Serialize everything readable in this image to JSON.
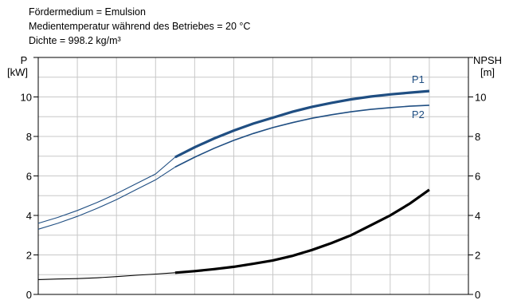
{
  "header": {
    "line1": "Fördermedium = Emulsion",
    "line2": "Medientemperatur während des Betriebes = 20 °C",
    "line3": "Dichte = 998.2 kg/m³"
  },
  "chart_data": {
    "type": "line",
    "left_axis": {
      "label_line1": "P",
      "label_line2": "[kW]",
      "ticks": [
        "0",
        "2",
        "4",
        "6",
        "8",
        "10"
      ],
      "ylim": [
        0,
        12
      ]
    },
    "right_axis": {
      "label_line1": "NPSH",
      "label_line2": "[m]",
      "ticks": [
        "0",
        "2",
        "4",
        "6",
        "8",
        "10"
      ],
      "ylim": [
        0,
        12
      ]
    },
    "xlim": [
      0,
      11
    ],
    "grid": true,
    "operating_range": [
      3.5,
      10
    ],
    "colors": {
      "power": "#1f4e82",
      "npsh": "#000000",
      "grid": "#c8c8c8"
    },
    "series": [
      {
        "name": "P1",
        "axis": "left",
        "x": [
          0,
          0.5,
          1,
          1.5,
          2,
          2.5,
          3,
          3.5,
          4,
          4.5,
          5,
          5.5,
          6,
          6.5,
          7,
          7.5,
          8,
          8.5,
          9,
          9.5,
          10
        ],
        "values": [
          3.6,
          3.9,
          4.25,
          4.65,
          5.1,
          5.6,
          6.1,
          6.95,
          7.45,
          7.9,
          8.3,
          8.65,
          8.95,
          9.25,
          9.5,
          9.7,
          9.88,
          10.02,
          10.13,
          10.22,
          10.3
        ]
      },
      {
        "name": "P2",
        "axis": "left",
        "x": [
          0,
          0.5,
          1,
          1.5,
          2,
          2.5,
          3,
          3.5,
          4,
          4.5,
          5,
          5.5,
          6,
          6.5,
          7,
          7.5,
          8,
          8.5,
          9,
          9.5,
          10
        ],
        "values": [
          3.3,
          3.6,
          3.95,
          4.35,
          4.8,
          5.3,
          5.8,
          6.45,
          6.95,
          7.4,
          7.8,
          8.15,
          8.45,
          8.7,
          8.92,
          9.1,
          9.25,
          9.37,
          9.46,
          9.53,
          9.58
        ]
      },
      {
        "name": "",
        "axis": "right",
        "x": [
          0,
          0.5,
          1,
          1.5,
          2,
          2.5,
          3,
          3.5,
          4,
          4.5,
          5,
          5.5,
          6,
          6.5,
          7,
          7.5,
          8,
          8.5,
          9,
          9.5,
          10
        ],
        "values": [
          0.75,
          0.78,
          0.8,
          0.84,
          0.9,
          0.97,
          1.03,
          1.1,
          1.18,
          1.28,
          1.4,
          1.55,
          1.72,
          1.95,
          2.25,
          2.6,
          3.0,
          3.5,
          4.0,
          4.6,
          5.3
        ]
      }
    ]
  }
}
